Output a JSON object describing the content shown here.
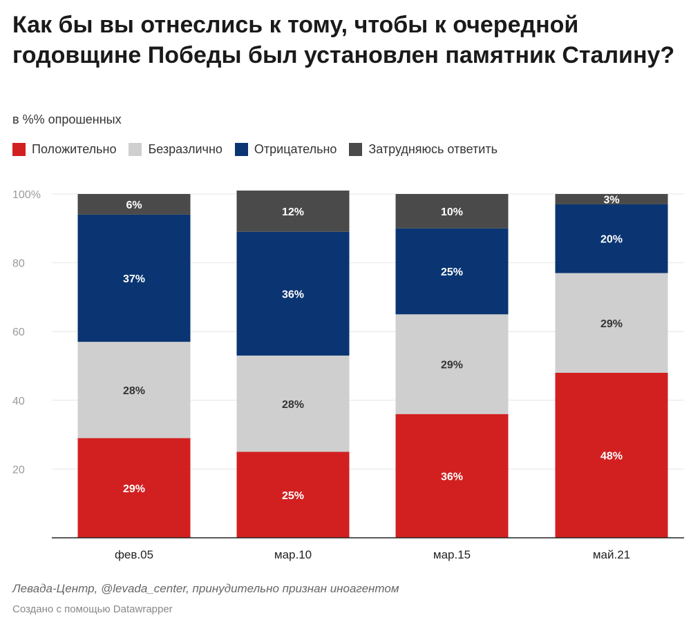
{
  "header": {
    "title": "Как бы вы отнеслись к тому, чтобы к очередной годовщине Победы был установлен памятник Сталину?",
    "subtitle": "в %% опрошенных"
  },
  "footer": {
    "source": "Левада-Центр, @levada_center, принудительно признан иноагентом",
    "made_with": "Создано с помощью Datawrapper"
  },
  "colors": {
    "positive": "#d22020",
    "indifferent": "#cfcfcf",
    "negative": "#0a3572",
    "hard_to_say": "#4a4a4a"
  },
  "chart_data": {
    "type": "bar",
    "stacked": true,
    "categories": [
      "фев.05",
      "мар.10",
      "мар.15",
      "май.21"
    ],
    "ylim": [
      0,
      100
    ],
    "yticks": [
      20,
      40,
      60,
      80,
      100
    ],
    "ytick_labels": [
      "20",
      "40",
      "60",
      "80",
      "100%"
    ],
    "grid": true,
    "legend_position": "top-left",
    "series": [
      {
        "name": "Положительно",
        "color": "#d22020",
        "values": [
          29,
          25,
          36,
          48
        ],
        "labels": [
          "29%",
          "25%",
          "36%",
          "48%"
        ]
      },
      {
        "name": "Безразлично",
        "color": "#cfcfcf",
        "values": [
          28,
          28,
          29,
          29
        ],
        "labels": [
          "28%",
          "28%",
          "29%",
          "29%"
        ]
      },
      {
        "name": "Отрицательно",
        "color": "#0a3572",
        "values": [
          37,
          36,
          25,
          20
        ],
        "labels": [
          "37%",
          "36%",
          "25%",
          "20%"
        ]
      },
      {
        "name": "Затрудняюсь ответить",
        "color": "#4a4a4a",
        "values": [
          6,
          12,
          10,
          3
        ],
        "labels": [
          "6%",
          "12%",
          "10%",
          "3%"
        ]
      }
    ]
  }
}
